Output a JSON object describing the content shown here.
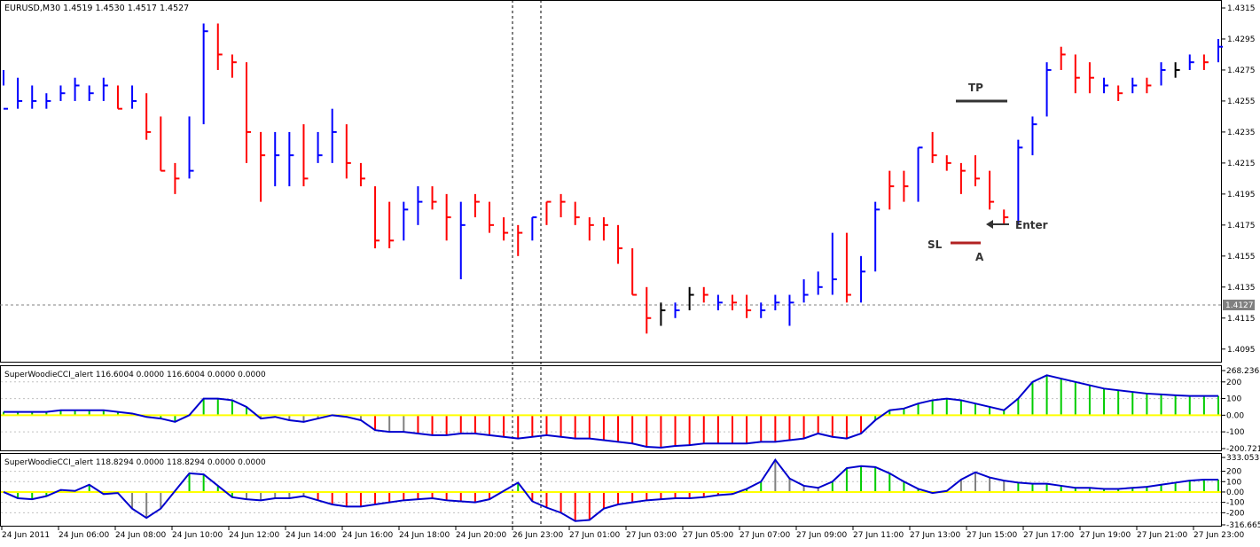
{
  "main_header": "EURUSD,M30  1.4519 1.4530 1.4517 1.4527",
  "price_axis": [
    "1.4315",
    "1.4295",
    "1.4275",
    "1.4255",
    "1.4235",
    "1.4215",
    "1.4195",
    "1.4175",
    "1.4155",
    "1.4135",
    "1.4115",
    "1.4095"
  ],
  "current_price_label": "1.4127",
  "time_axis": [
    "24 Jun 2011",
    "24 Jun 06:00",
    "24 Jun 08:00",
    "24 Jun 10:00",
    "24 Jun 12:00",
    "24 Jun 14:00",
    "24 Jun 16:00",
    "24 Jun 18:00",
    "24 Jun 20:00",
    "26 Jun 23:00",
    "27 Jun 01:00",
    "27 Jun 03:00",
    "27 Jun 05:00",
    "27 Jun 07:00",
    "27 Jun 09:00",
    "27 Jun 11:00",
    "27 Jun 13:00",
    "27 Jun 15:00",
    "27 Jun 17:00",
    "27 Jun 19:00",
    "27 Jun 21:00",
    "27 Jun 23:00"
  ],
  "annotations": {
    "tp": "TP",
    "sl": "SL",
    "enter": "Enter",
    "a": "A"
  },
  "ind1": {
    "header": "SuperWoodieCCI_alert 116.6004 0.0000 116.6004 0.0000 0.0000",
    "axis": [
      "268.2363",
      "200",
      "100",
      "0.00",
      "-100",
      "-200.721"
    ]
  },
  "ind2": {
    "header": "SuperWoodieCCI_alert 118.8294 0.0000 118.8294 0.0000 0.0000",
    "axis": [
      "333.0537",
      "200",
      "100",
      "0.00",
      "-100",
      "-200",
      "-316.665"
    ]
  },
  "colors": {
    "up": "#0000ff",
    "down": "#ff0000",
    "neutral": "#000000",
    "cci_line": "#0000cd",
    "zero_line": "#ffff00",
    "hist_pos": "#00cc00",
    "hist_neg": "#ff0000",
    "hist_neutral": "#808080"
  },
  "chart_data": [
    {
      "type": "ohlc",
      "symbol": "EURUSD",
      "timeframe": "M30",
      "ylim": [
        1.4088,
        1.4319
      ],
      "bar_count": 86,
      "bars": [
        [
          1.4275,
          1.4265,
          1.425,
          "up"
        ],
        [
          1.427,
          1.425,
          1.4255,
          "up"
        ],
        [
          1.4265,
          1.425,
          1.4255,
          "up"
        ],
        [
          1.426,
          1.425,
          1.4255,
          "up"
        ],
        [
          1.4265,
          1.4255,
          1.426,
          "up"
        ],
        [
          1.427,
          1.4255,
          1.4265,
          "up"
        ],
        [
          1.4265,
          1.4255,
          1.426,
          "up"
        ],
        [
          1.427,
          1.4255,
          1.4265,
          "up"
        ],
        [
          1.4265,
          1.425,
          1.425,
          "down"
        ],
        [
          1.4265,
          1.425,
          1.4255,
          "up"
        ],
        [
          1.426,
          1.423,
          1.4235,
          "down"
        ],
        [
          1.4245,
          1.421,
          1.421,
          "down"
        ],
        [
          1.4215,
          1.4195,
          1.4205,
          "down"
        ],
        [
          1.4245,
          1.4205,
          1.421,
          "up"
        ],
        [
          1.4305,
          1.424,
          1.43,
          "up"
        ],
        [
          1.4305,
          1.4275,
          1.4285,
          "down"
        ],
        [
          1.4285,
          1.427,
          1.428,
          "down"
        ],
        [
          1.428,
          1.4215,
          1.4235,
          "down"
        ],
        [
          1.4235,
          1.419,
          1.422,
          "down"
        ],
        [
          1.4235,
          1.42,
          1.422,
          "up"
        ],
        [
          1.4235,
          1.42,
          1.422,
          "up"
        ],
        [
          1.424,
          1.42,
          1.4205,
          "down"
        ],
        [
          1.4235,
          1.4215,
          1.422,
          "up"
        ],
        [
          1.425,
          1.4215,
          1.4235,
          "up"
        ],
        [
          1.424,
          1.4205,
          1.4215,
          "down"
        ],
        [
          1.4215,
          1.42,
          1.4205,
          "down"
        ],
        [
          1.42,
          1.416,
          1.4165,
          "down"
        ],
        [
          1.419,
          1.416,
          1.4165,
          "down"
        ],
        [
          1.419,
          1.4165,
          1.4185,
          "up"
        ],
        [
          1.42,
          1.4175,
          1.419,
          "up"
        ],
        [
          1.42,
          1.4185,
          1.419,
          "down"
        ],
        [
          1.4195,
          1.4165,
          1.418,
          "down"
        ],
        [
          1.419,
          1.414,
          1.4175,
          "up"
        ],
        [
          1.4195,
          1.418,
          1.419,
          "down"
        ],
        [
          1.419,
          1.417,
          1.4175,
          "down"
        ],
        [
          1.418,
          1.4165,
          1.417,
          "down"
        ],
        [
          1.4175,
          1.4155,
          1.417,
          "down"
        ],
        [
          1.418,
          1.4165,
          1.418,
          "up"
        ],
        [
          1.419,
          1.4175,
          1.419,
          "down"
        ],
        [
          1.4195,
          1.418,
          1.419,
          "down"
        ],
        [
          1.419,
          1.4175,
          1.418,
          "down"
        ],
        [
          1.418,
          1.4165,
          1.4175,
          "down"
        ],
        [
          1.418,
          1.4165,
          1.4175,
          "down"
        ],
        [
          1.4175,
          1.415,
          1.416,
          "down"
        ],
        [
          1.416,
          1.413,
          1.413,
          "down"
        ],
        [
          1.4135,
          1.4105,
          1.4115,
          "down"
        ],
        [
          1.4125,
          1.411,
          1.412,
          "neutral"
        ],
        [
          1.4125,
          1.4115,
          1.412,
          "up"
        ],
        [
          1.4135,
          1.412,
          1.413,
          "neutral"
        ],
        [
          1.4135,
          1.4125,
          1.413,
          "down"
        ],
        [
          1.413,
          1.412,
          1.4125,
          "up"
        ],
        [
          1.413,
          1.412,
          1.4125,
          "down"
        ],
        [
          1.413,
          1.4115,
          1.412,
          "down"
        ],
        [
          1.4125,
          1.4115,
          1.412,
          "up"
        ],
        [
          1.413,
          1.412,
          1.4125,
          "up"
        ],
        [
          1.413,
          1.411,
          1.4125,
          "up"
        ],
        [
          1.414,
          1.4125,
          1.413,
          "up"
        ],
        [
          1.4145,
          1.413,
          1.4135,
          "up"
        ],
        [
          1.417,
          1.413,
          1.414,
          "up"
        ],
        [
          1.417,
          1.4125,
          1.413,
          "down"
        ],
        [
          1.4155,
          1.4125,
          1.4145,
          "up"
        ],
        [
          1.419,
          1.4145,
          1.4185,
          "up"
        ],
        [
          1.421,
          1.4185,
          1.42,
          "down"
        ],
        [
          1.421,
          1.419,
          1.42,
          "down"
        ],
        [
          1.4225,
          1.419,
          1.4225,
          "up"
        ],
        [
          1.4235,
          1.4215,
          1.422,
          "down"
        ],
        [
          1.422,
          1.421,
          1.4215,
          "down"
        ],
        [
          1.4215,
          1.4195,
          1.421,
          "down"
        ],
        [
          1.422,
          1.42,
          1.4205,
          "down"
        ],
        [
          1.421,
          1.4185,
          1.419,
          "down"
        ],
        [
          1.4185,
          1.4175,
          1.418,
          "down"
        ],
        [
          1.423,
          1.4175,
          1.4225,
          "up"
        ],
        [
          1.4245,
          1.422,
          1.424,
          "up"
        ],
        [
          1.428,
          1.4245,
          1.4275,
          "up"
        ],
        [
          1.429,
          1.4275,
          1.4285,
          "down"
        ],
        [
          1.4285,
          1.426,
          1.427,
          "down"
        ],
        [
          1.428,
          1.426,
          1.427,
          "down"
        ],
        [
          1.427,
          1.426,
          1.4265,
          "up"
        ],
        [
          1.4265,
          1.4255,
          1.426,
          "down"
        ],
        [
          1.427,
          1.426,
          1.4265,
          "up"
        ],
        [
          1.427,
          1.426,
          1.4265,
          "down"
        ],
        [
          1.428,
          1.4265,
          1.4275,
          "up"
        ],
        [
          1.428,
          1.427,
          1.4275,
          "neutral"
        ],
        [
          1.4285,
          1.4275,
          1.428,
          "up"
        ],
        [
          1.4285,
          1.4275,
          1.428,
          "down"
        ],
        [
          1.4295,
          1.428,
          1.429,
          "up"
        ]
      ],
      "levels": {
        "tp": 1.4255,
        "sl": 1.4172,
        "current": 1.4127
      }
    },
    {
      "type": "histogram+line",
      "title": "SuperWoodieCCI_alert",
      "ylim": [
        -200.721,
        268.2363
      ],
      "values": [
        20,
        20,
        20,
        20,
        30,
        30,
        30,
        30,
        20,
        10,
        -10,
        -20,
        -40,
        0,
        100,
        100,
        90,
        50,
        -20,
        -10,
        -30,
        -40,
        -20,
        0,
        -10,
        -30,
        -90,
        -100,
        -100,
        -110,
        -120,
        -120,
        -110,
        -110,
        -120,
        -130,
        -140,
        -130,
        -120,
        -130,
        -140,
        -140,
        -150,
        -160,
        -170,
        -190,
        -195,
        -185,
        -180,
        -170,
        -170,
        -170,
        -170,
        -160,
        -160,
        -150,
        -140,
        -110,
        -130,
        -140,
        -110,
        -30,
        30,
        40,
        70,
        90,
        100,
        90,
        70,
        50,
        30,
        100,
        200,
        240,
        220,
        200,
        180,
        160,
        150,
        140,
        130,
        125,
        120,
        116,
        116,
        116
      ],
      "hist_colors": [
        "g",
        "g",
        "g",
        "g",
        "g",
        "g",
        "g",
        "g",
        "g",
        "g",
        "g",
        "g",
        "g",
        "g",
        "g",
        "g",
        "g",
        "g",
        "n",
        "n",
        "n",
        "n",
        "n",
        "n",
        "n",
        "n",
        "r",
        "n",
        "n",
        "r",
        "r",
        "r",
        "r",
        "r",
        "r",
        "r",
        "r",
        "r",
        "r",
        "r",
        "r",
        "r",
        "r",
        "r",
        "r",
        "r",
        "r",
        "r",
        "r",
        "r",
        "r",
        "r",
        "r",
        "r",
        "r",
        "r",
        "r",
        "r",
        "r",
        "r",
        "r",
        "g",
        "g",
        "g",
        "g",
        "g",
        "g",
        "g",
        "g",
        "g",
        "g",
        "g",
        "g",
        "g",
        "g",
        "g",
        "g",
        "g",
        "g",
        "g",
        "g",
        "g",
        "g",
        "g",
        "g",
        "g"
      ]
    },
    {
      "type": "histogram+line",
      "title": "SuperWoodieCCI_alert",
      "ylim": [
        -316.665,
        333.0537
      ],
      "values": [
        0,
        -60,
        -70,
        -40,
        20,
        10,
        70,
        -20,
        -10,
        -160,
        -250,
        -160,
        10,
        180,
        170,
        60,
        -50,
        -70,
        -80,
        -60,
        -60,
        -40,
        -80,
        -120,
        -140,
        -140,
        -120,
        -100,
        -80,
        -70,
        -60,
        -80,
        -90,
        -100,
        -70,
        10,
        90,
        -90,
        -150,
        -200,
        -280,
        -270,
        -160,
        -120,
        -100,
        -80,
        -70,
        -60,
        -60,
        -50,
        -30,
        -20,
        30,
        100,
        310,
        130,
        60,
        40,
        100,
        230,
        250,
        240,
        180,
        100,
        30,
        -10,
        10,
        120,
        190,
        140,
        110,
        90,
        80,
        80,
        60,
        40,
        40,
        30,
        30,
        40,
        50,
        70,
        90,
        110,
        119,
        119
      ],
      "hist_colors": [
        "g",
        "g",
        "g",
        "g",
        "g",
        "g",
        "g",
        "g",
        "g",
        "n",
        "n",
        "n",
        "g",
        "g",
        "g",
        "g",
        "g",
        "n",
        "n",
        "n",
        "n",
        "n",
        "r",
        "r",
        "r",
        "r",
        "r",
        "r",
        "r",
        "r",
        "r",
        "r",
        "r",
        "r",
        "r",
        "g",
        "g",
        "r",
        "r",
        "r",
        "r",
        "r",
        "r",
        "r",
        "r",
        "r",
        "r",
        "r",
        "r",
        "r",
        "r",
        "r",
        "g",
        "g",
        "n",
        "n",
        "n",
        "n",
        "g",
        "g",
        "g",
        "g",
        "g",
        "g",
        "g",
        "n",
        "g",
        "n",
        "n",
        "n",
        "n",
        "g",
        "g",
        "g",
        "g",
        "g",
        "g",
        "g",
        "g",
        "g",
        "g",
        "g",
        "g",
        "g",
        "g",
        "g"
      ]
    }
  ]
}
